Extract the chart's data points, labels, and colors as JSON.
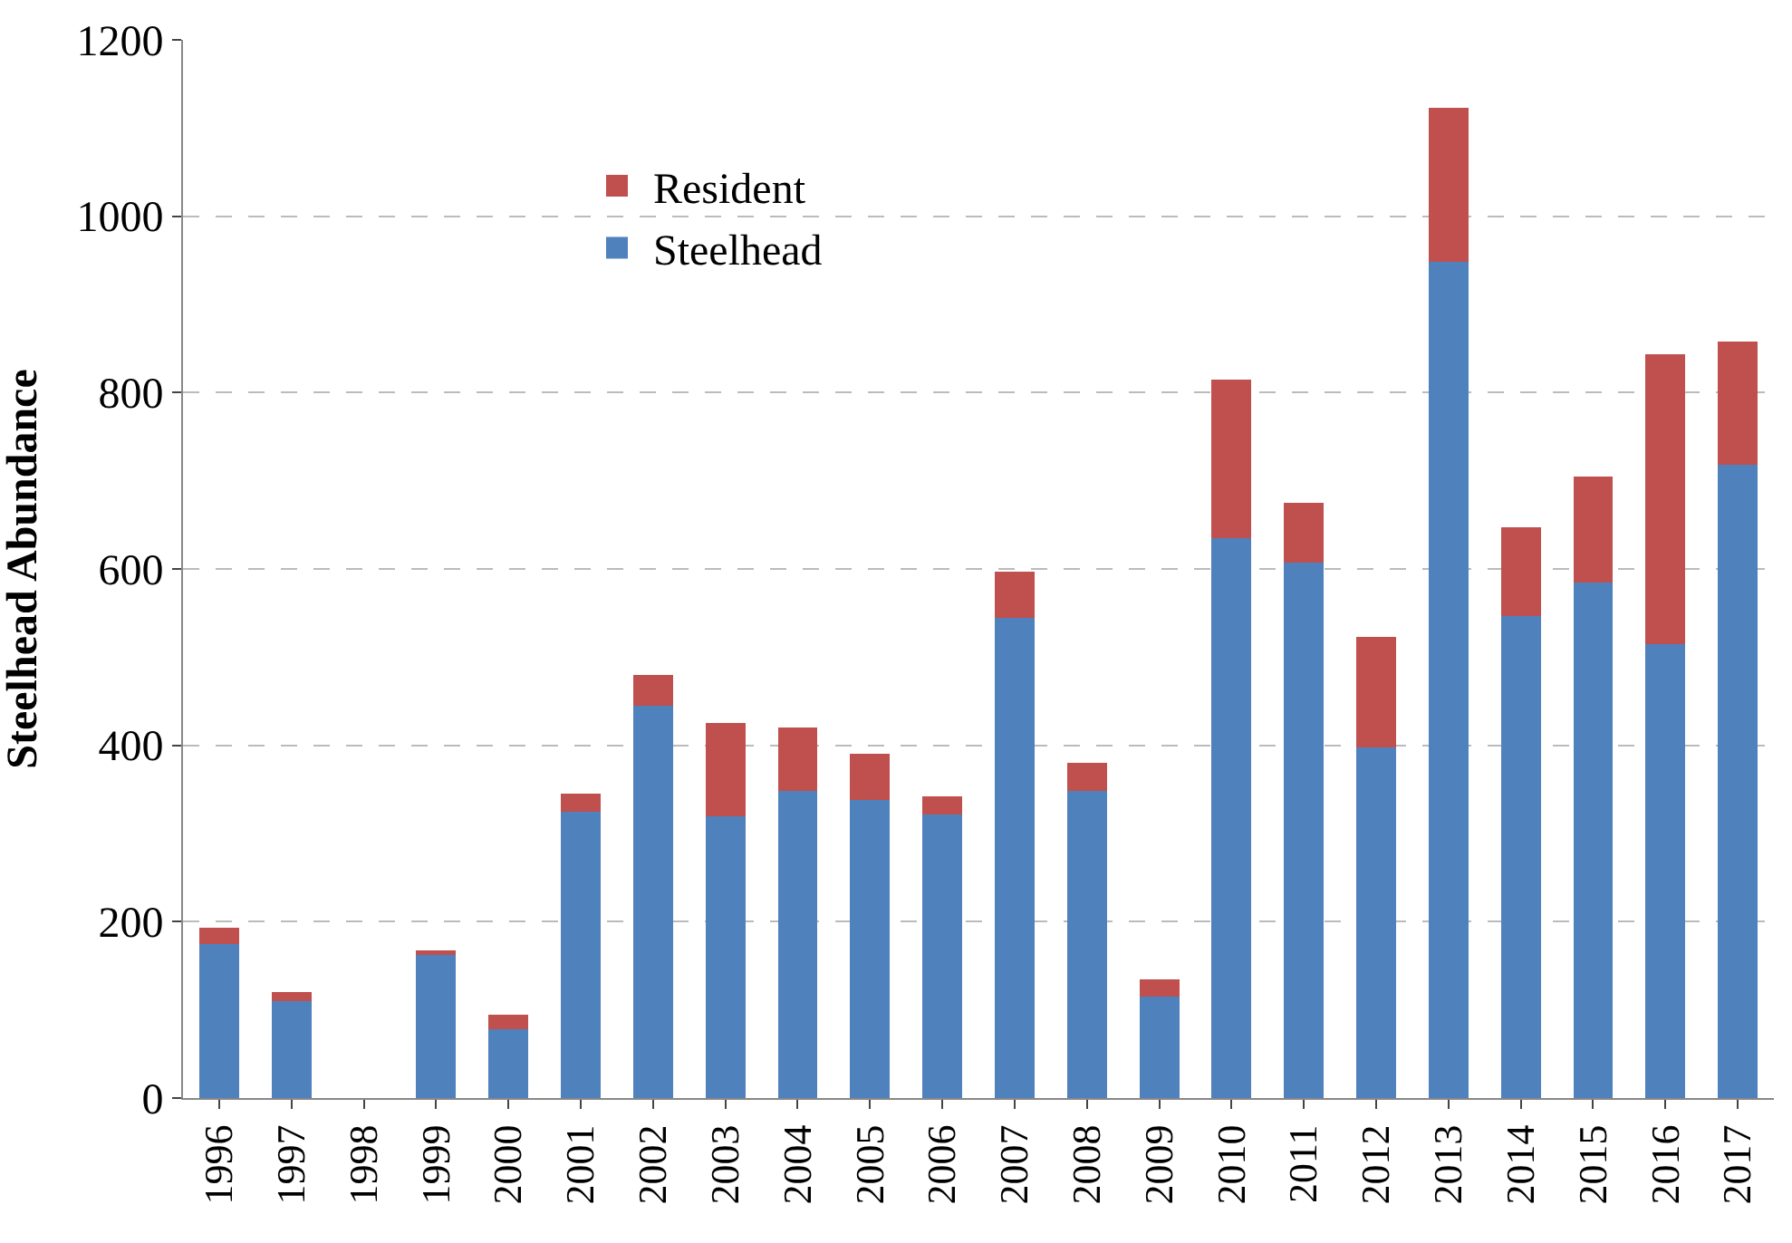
{
  "chart_data": {
    "type": "bar",
    "stacked": true,
    "ylabel": "Steelhead Abundance",
    "categories": [
      "1996",
      "1997",
      "1998",
      "1999",
      "2000",
      "2001",
      "2002",
      "2003",
      "2004",
      "2005",
      "2006",
      "2007",
      "2008",
      "2009",
      "2010",
      "2011",
      "2012",
      "2013",
      "2014",
      "2015",
      "2016",
      "2017"
    ],
    "series": [
      {
        "name": "Steelhead",
        "color": "#4f81bd",
        "values": [
          175,
          110,
          0,
          162,
          78,
          325,
          445,
          320,
          348,
          338,
          322,
          545,
          348,
          115,
          635,
          607,
          398,
          948,
          547,
          585,
          515,
          718
        ]
      },
      {
        "name": "Resident",
        "color": "#c0504d",
        "values": [
          18,
          10,
          0,
          5,
          17,
          20,
          35,
          105,
          72,
          52,
          20,
          52,
          32,
          20,
          180,
          68,
          125,
          175,
          100,
          120,
          328,
          140
        ]
      }
    ],
    "ylim": [
      0,
      1200
    ],
    "yticks": [
      0,
      200,
      400,
      600,
      800,
      1000,
      1200
    ],
    "grid": "y",
    "legend": "top left"
  }
}
